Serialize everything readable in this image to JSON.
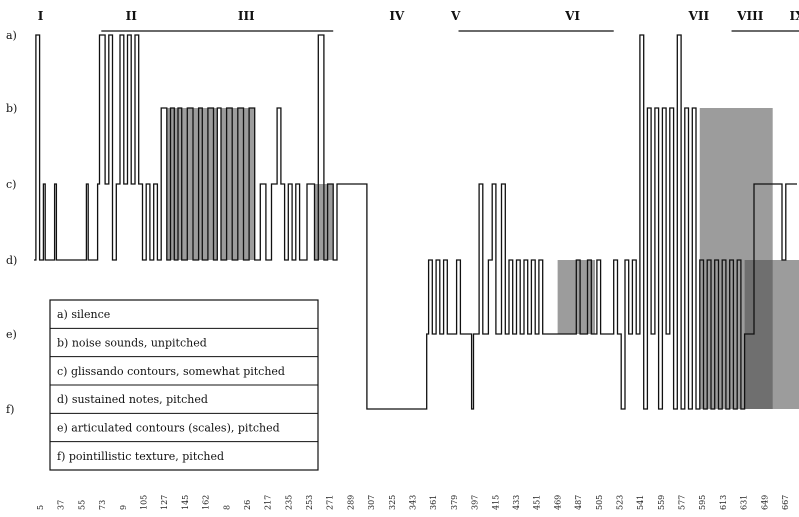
{
  "chart_data": {
    "type": "line",
    "title": "",
    "xlabel": "",
    "ylabel": "",
    "levels": [
      "a)",
      "b)",
      "c)",
      "d)",
      "e)",
      "f)"
    ],
    "sections": [
      {
        "label": "I",
        "x": 2
      },
      {
        "label": "II",
        "x": 49
      },
      {
        "label": "III",
        "x": 109
      },
      {
        "label": "IV",
        "x": 190
      },
      {
        "label": "V",
        "x": 223
      },
      {
        "label": "VI",
        "x": 284
      },
      {
        "label": "VII",
        "x": 350
      },
      {
        "label": "VIII",
        "x": 376
      },
      {
        "label": "IX",
        "x": 404
      }
    ],
    "x_ticks": [
      "5",
      "37",
      "55",
      "73",
      "9",
      "105",
      "127",
      "145",
      "162",
      "8",
      "26",
      "217",
      "235",
      "253",
      "271",
      "289",
      "307",
      "325",
      "343",
      "361",
      "379",
      "397",
      "415",
      "433",
      "451",
      "469",
      "487",
      "505",
      "523",
      "541",
      "559",
      "577",
      "595",
      "613",
      "631",
      "649",
      "667"
    ],
    "legend": [
      "a) silence",
      "b) noise sounds, unpitched",
      "c) glissando contours,  somewhat pitched",
      "d) sustained notes, pitched",
      "e) articulated contours (scales), pitched",
      "f) pointillistic texture, pitched"
    ],
    "spans": [
      {
        "start": 36,
        "end": 160,
        "level": 0
      },
      {
        "start": 227,
        "end": 310,
        "level": 0
      },
      {
        "start": 373,
        "end": 420,
        "level": 0
      }
    ],
    "dense": [
      {
        "start": 71,
        "end": 98,
        "from": 1,
        "to": 3
      },
      {
        "start": 100,
        "end": 118,
        "from": 1,
        "to": 3
      },
      {
        "start": 150,
        "end": 160,
        "from": 2,
        "to": 3
      },
      {
        "start": 280,
        "end": 300,
        "from": 3,
        "to": 4
      },
      {
        "start": 356,
        "end": 395,
        "from": 1,
        "to": 5
      },
      {
        "start": 380,
        "end": 410,
        "from": 3,
        "to": 5
      }
    ],
    "series": [
      {
        "values": [
          [
            0,
            3
          ],
          [
            1,
            3
          ],
          [
            1,
            0
          ],
          [
            3,
            0
          ],
          [
            3,
            3
          ],
          [
            5,
            3
          ],
          [
            5,
            2
          ],
          [
            6,
            2
          ],
          [
            6,
            3
          ],
          [
            11,
            3
          ],
          [
            11,
            2
          ],
          [
            12,
            2
          ],
          [
            12,
            3
          ],
          [
            28,
            3
          ],
          [
            28,
            2
          ],
          [
            29,
            2
          ],
          [
            29,
            3
          ],
          [
            34,
            3
          ],
          [
            34,
            2
          ],
          [
            35,
            2
          ],
          [
            35,
            0
          ],
          [
            38,
            0
          ],
          [
            38,
            2
          ],
          [
            40,
            2
          ],
          [
            40,
            0
          ],
          [
            42,
            0
          ],
          [
            42,
            3
          ],
          [
            44,
            3
          ],
          [
            44,
            2
          ],
          [
            46,
            2
          ],
          [
            46,
            0
          ],
          [
            48,
            0
          ],
          [
            48,
            2
          ],
          [
            50,
            2
          ],
          [
            50,
            0
          ],
          [
            52,
            0
          ],
          [
            52,
            2
          ],
          [
            54,
            2
          ],
          [
            54,
            0
          ],
          [
            56,
            0
          ],
          [
            56,
            2
          ],
          [
            58,
            2
          ],
          [
            58,
            3
          ],
          [
            60,
            3
          ],
          [
            60,
            2
          ],
          [
            62,
            2
          ],
          [
            62,
            3
          ],
          [
            64,
            3
          ],
          [
            64,
            2
          ],
          [
            66,
            2
          ],
          [
            66,
            3
          ],
          [
            68,
            3
          ],
          [
            68,
            1
          ],
          [
            71,
            1
          ],
          [
            71,
            3
          ],
          [
            73,
            3
          ],
          [
            73,
            1
          ],
          [
            75,
            1
          ],
          [
            75,
            3
          ],
          [
            77,
            3
          ],
          [
            77,
            1
          ],
          [
            79,
            1
          ],
          [
            79,
            3
          ],
          [
            82,
            3
          ],
          [
            82,
            1
          ],
          [
            85,
            1
          ],
          [
            85,
            3
          ],
          [
            88,
            3
          ],
          [
            88,
            1
          ],
          [
            90,
            1
          ],
          [
            90,
            3
          ],
          [
            93,
            3
          ],
          [
            93,
            1
          ],
          [
            96,
            1
          ],
          [
            96,
            3
          ],
          [
            98,
            3
          ],
          [
            98,
            1
          ],
          [
            100,
            1
          ],
          [
            100,
            3
          ],
          [
            103,
            3
          ],
          [
            103,
            1
          ],
          [
            106,
            1
          ],
          [
            106,
            3
          ],
          [
            109,
            3
          ],
          [
            109,
            1
          ],
          [
            112,
            1
          ],
          [
            112,
            3
          ],
          [
            115,
            3
          ],
          [
            115,
            1
          ],
          [
            118,
            1
          ],
          [
            118,
            3
          ],
          [
            121,
            3
          ],
          [
            121,
            2
          ],
          [
            124,
            2
          ],
          [
            124,
            3
          ],
          [
            127,
            3
          ],
          [
            127,
            2
          ],
          [
            130,
            2
          ],
          [
            130,
            1
          ],
          [
            132,
            1
          ],
          [
            132,
            2
          ],
          [
            134,
            2
          ],
          [
            134,
            3
          ],
          [
            136,
            3
          ],
          [
            136,
            2
          ],
          [
            138,
            2
          ],
          [
            138,
            3
          ],
          [
            140,
            3
          ],
          [
            140,
            2
          ],
          [
            142,
            2
          ],
          [
            142,
            3
          ],
          [
            146,
            3
          ],
          [
            146,
            2
          ],
          [
            150,
            2
          ],
          [
            150,
            3
          ],
          [
            152,
            3
          ],
          [
            152,
            0
          ],
          [
            155,
            0
          ],
          [
            155,
            3
          ],
          [
            157,
            3
          ],
          [
            157,
            2
          ],
          [
            160,
            2
          ],
          [
            160,
            3
          ],
          [
            162,
            3
          ],
          [
            162,
            2
          ],
          [
            178,
            2
          ],
          [
            178,
            5
          ],
          [
            210,
            5
          ],
          [
            210,
            4
          ],
          [
            211,
            4
          ],
          [
            211,
            3
          ],
          [
            213,
            3
          ],
          [
            213,
            4
          ],
          [
            215,
            4
          ],
          [
            215,
            3
          ],
          [
            217,
            3
          ],
          [
            217,
            4
          ],
          [
            219,
            4
          ],
          [
            219,
            3
          ],
          [
            221,
            3
          ],
          [
            221,
            4
          ],
          [
            226,
            4
          ],
          [
            226,
            3
          ],
          [
            228,
            3
          ],
          [
            228,
            4
          ],
          [
            234,
            4
          ],
          [
            234,
            5
          ],
          [
            235,
            5
          ],
          [
            235,
            4
          ],
          [
            238,
            4
          ],
          [
            238,
            2
          ],
          [
            240,
            2
          ],
          [
            240,
            4
          ],
          [
            243,
            4
          ],
          [
            243,
            3
          ],
          [
            245,
            3
          ],
          [
            245,
            2
          ],
          [
            247,
            2
          ],
          [
            247,
            4
          ],
          [
            250,
            4
          ],
          [
            250,
            2
          ],
          [
            252,
            2
          ],
          [
            252,
            4
          ],
          [
            254,
            4
          ],
          [
            254,
            3
          ],
          [
            256,
            3
          ],
          [
            256,
            4
          ],
          [
            258,
            4
          ],
          [
            258,
            3
          ],
          [
            260,
            3
          ],
          [
            260,
            4
          ],
          [
            262,
            4
          ],
          [
            262,
            3
          ],
          [
            264,
            3
          ],
          [
            264,
            4
          ],
          [
            266,
            4
          ],
          [
            266,
            3
          ],
          [
            268,
            3
          ],
          [
            268,
            4
          ],
          [
            270,
            4
          ],
          [
            270,
            3
          ],
          [
            272,
            3
          ],
          [
            272,
            4
          ],
          [
            290,
            4
          ],
          [
            290,
            3
          ],
          [
            292,
            3
          ],
          [
            292,
            4
          ],
          [
            296,
            4
          ],
          [
            296,
            3
          ],
          [
            298,
            3
          ],
          [
            298,
            4
          ],
          [
            301,
            4
          ],
          [
            301,
            3
          ],
          [
            303,
            3
          ],
          [
            303,
            4
          ],
          [
            310,
            4
          ],
          [
            310,
            3
          ],
          [
            312,
            3
          ],
          [
            312,
            4
          ],
          [
            314,
            4
          ],
          [
            314,
            5
          ],
          [
            316,
            5
          ],
          [
            316,
            3
          ],
          [
            318,
            3
          ],
          [
            318,
            4
          ],
          [
            320,
            4
          ],
          [
            320,
            3
          ],
          [
            322,
            3
          ],
          [
            322,
            4
          ],
          [
            324,
            4
          ],
          [
            324,
            0
          ],
          [
            326,
            0
          ],
          [
            326,
            5
          ],
          [
            328,
            5
          ],
          [
            328,
            1
          ],
          [
            330,
            1
          ],
          [
            330,
            4
          ],
          [
            332,
            4
          ],
          [
            332,
            1
          ],
          [
            334,
            1
          ],
          [
            334,
            5
          ],
          [
            336,
            5
          ],
          [
            336,
            1
          ],
          [
            338,
            1
          ],
          [
            338,
            4
          ],
          [
            340,
            4
          ],
          [
            340,
            1
          ],
          [
            342,
            1
          ],
          [
            342,
            5
          ],
          [
            344,
            5
          ],
          [
            344,
            0
          ],
          [
            346,
            0
          ],
          [
            346,
            5
          ],
          [
            348,
            5
          ],
          [
            348,
            1
          ],
          [
            350,
            1
          ],
          [
            350,
            5
          ],
          [
            352,
            5
          ],
          [
            352,
            1
          ],
          [
            354,
            1
          ],
          [
            354,
            5
          ],
          [
            356,
            5
          ],
          [
            356,
            3
          ],
          [
            358,
            3
          ],
          [
            358,
            5
          ],
          [
            360,
            5
          ],
          [
            360,
            3
          ],
          [
            362,
            3
          ],
          [
            362,
            5
          ],
          [
            364,
            5
          ],
          [
            364,
            3
          ],
          [
            366,
            3
          ],
          [
            366,
            5
          ],
          [
            368,
            5
          ],
          [
            368,
            3
          ],
          [
            370,
            3
          ],
          [
            370,
            5
          ],
          [
            372,
            5
          ],
          [
            372,
            3
          ],
          [
            374,
            3
          ],
          [
            374,
            5
          ],
          [
            376,
            5
          ],
          [
            376,
            3
          ],
          [
            378,
            3
          ],
          [
            378,
            5
          ],
          [
            380,
            5
          ],
          [
            380,
            4
          ],
          [
            385,
            4
          ],
          [
            385,
            2
          ],
          [
            400,
            2
          ],
          [
            400,
            3
          ],
          [
            402,
            3
          ],
          [
            402,
            2
          ],
          [
            408,
            2
          ]
        ]
      }
    ],
    "x_range": [
      0,
      408
    ],
    "grid": false
  }
}
